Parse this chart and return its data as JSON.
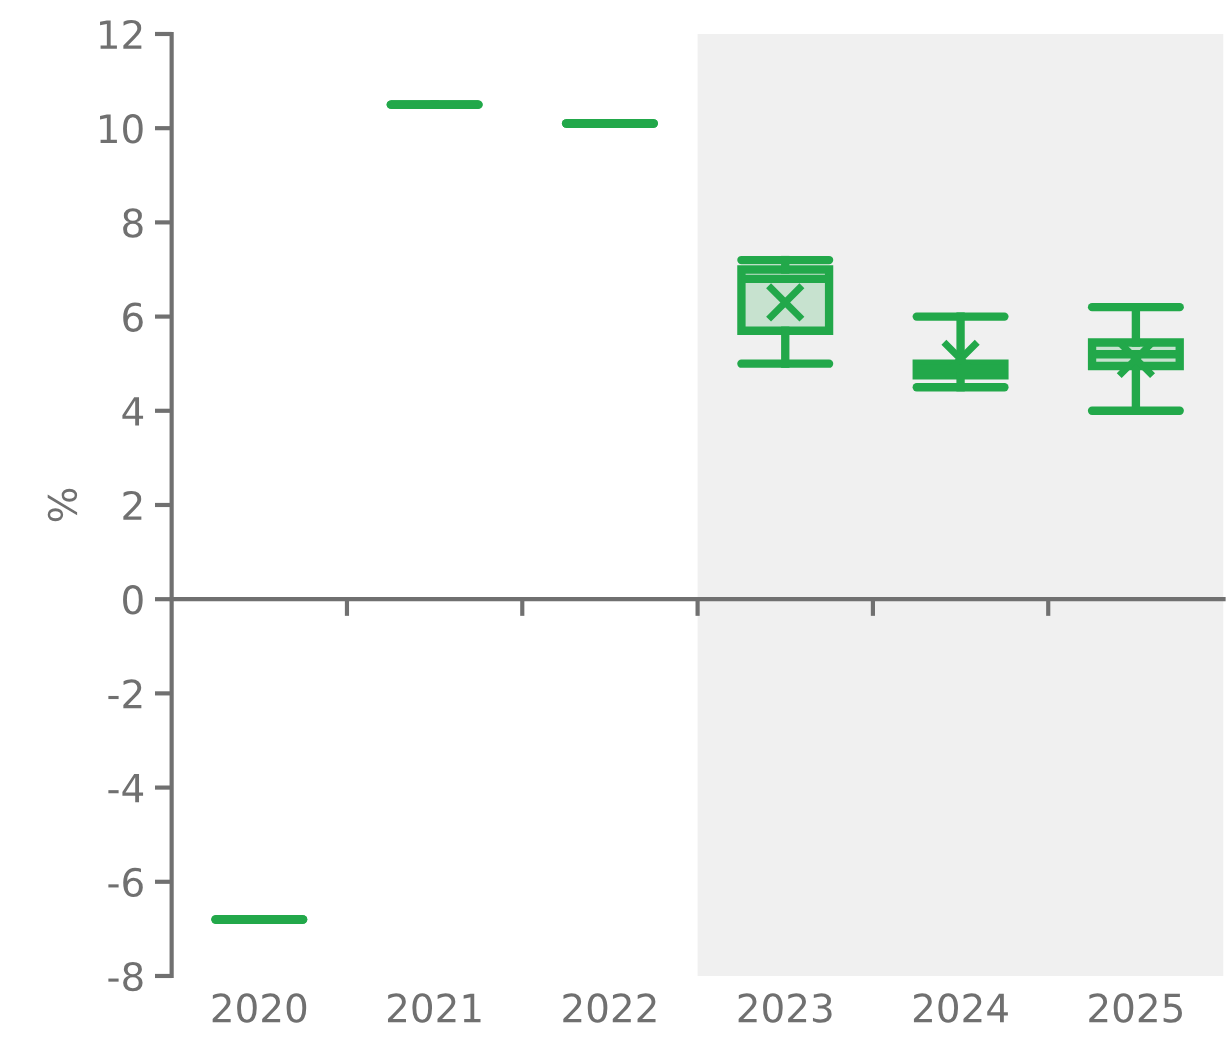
{
  "chart_data": {
    "type": "box",
    "ylabel": "%",
    "categories": [
      "2020",
      "2021",
      "2022",
      "2023",
      "2024",
      "2025"
    ],
    "boxes": [
      {
        "low": -6.8,
        "q1": -6.8,
        "median": -6.8,
        "q3": -6.8,
        "high": -6.8
      },
      {
        "low": 10.5,
        "q1": 10.5,
        "median": 10.5,
        "q3": 10.5,
        "high": 10.5
      },
      {
        "low": 10.1,
        "q1": 10.1,
        "median": 10.1,
        "q3": 10.1,
        "high": 10.1
      },
      {
        "low": 5.0,
        "q1": 5.7,
        "median": 6.8,
        "q3": 7.0,
        "high": 7.2,
        "mean": 6.3
      },
      {
        "low": 4.5,
        "q1": 4.75,
        "median": 4.9,
        "q3": 5.0,
        "high": 6.0,
        "mean": 5.1
      },
      {
        "low": 4.0,
        "q1": 4.95,
        "median": 5.2,
        "q3": 5.45,
        "high": 6.2,
        "mean": 5.1
      }
    ],
    "color": "#22a84a",
    "ylim": [
      -8,
      12
    ],
    "yticks": [
      -8,
      -6,
      -4,
      -2,
      0,
      2,
      4,
      6,
      8,
      10,
      12
    ],
    "bands": [
      {
        "axis": "x",
        "from": "2023",
        "to": "2025",
        "color": "#f0f0f0"
      }
    ],
    "marker": "cross"
  }
}
